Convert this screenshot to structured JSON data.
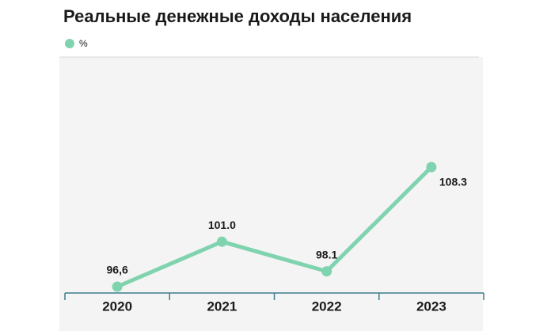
{
  "chart_data": {
    "type": "line",
    "title": "Реальные денежные доходы населения",
    "categories": [
      "2020",
      "2021",
      "2022",
      "2023"
    ],
    "series": [
      {
        "name": "%",
        "color": "#7fd3ae",
        "values": [
          96.6,
          101.0,
          98.1,
          108.3
        ],
        "value_labels": [
          "96,6",
          "101.0",
          "98.1",
          "108.3"
        ]
      }
    ],
    "grid": false
  }
}
